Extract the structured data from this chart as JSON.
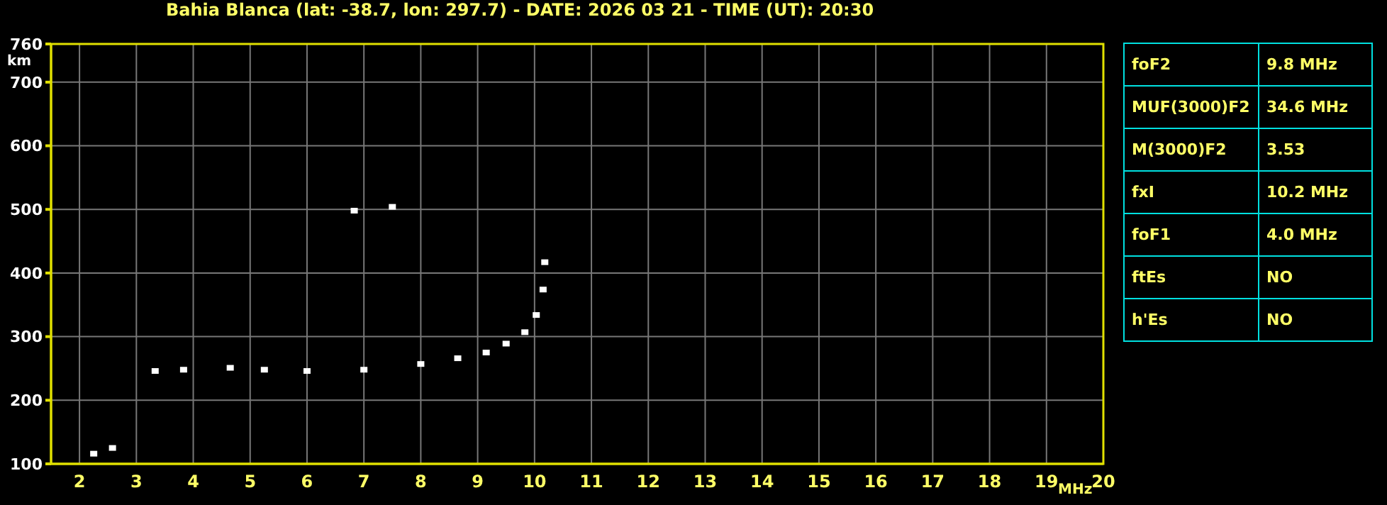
{
  "chart_data": [
    {
      "type": "scatter",
      "title": "Bahia Blanca (lat: -38.7, lon: 297.7) - DATE: 2026 03 21 - TIME (UT): 20:30",
      "xlabel": "MHz",
      "ylabel": "km",
      "x": [
        2.25,
        2.58,
        3.33,
        3.83,
        4.65,
        5.25,
        6.0,
        7.0,
        8.0,
        8.65,
        9.15,
        9.5,
        9.83,
        10.03,
        10.15,
        10.18,
        6.83,
        7.5
      ],
      "series": [
        {
          "color": "#ffffff",
          "values": [
            116,
            125,
            246,
            248,
            251,
            248,
            246,
            248,
            257,
            266,
            275,
            289,
            307,
            334,
            374,
            417,
            498,
            504
          ]
        }
      ],
      "xlim": [
        1.5,
        20
      ],
      "xticks": [
        2,
        3,
        4,
        5,
        6,
        7,
        8,
        9,
        10,
        11,
        12,
        13,
        14,
        15,
        16,
        17,
        18,
        19,
        20
      ],
      "ylim": [
        100,
        760
      ],
      "yticks": [
        100,
        200,
        300,
        400,
        500,
        600,
        700,
        760
      ],
      "grid": true,
      "marker": "square"
    },
    {
      "type": "other",
      "annotations": [
        "foF2",
        "9.8 MHz",
        "MUF(3000)F2",
        "34.6 MHz",
        "M(3000)F2",
        "3.53",
        "fxI",
        "10.2 MHz",
        "foF1",
        "4.0 MHz",
        "ftEs",
        "NO",
        "h'Es",
        "NO"
      ]
    }
  ]
}
